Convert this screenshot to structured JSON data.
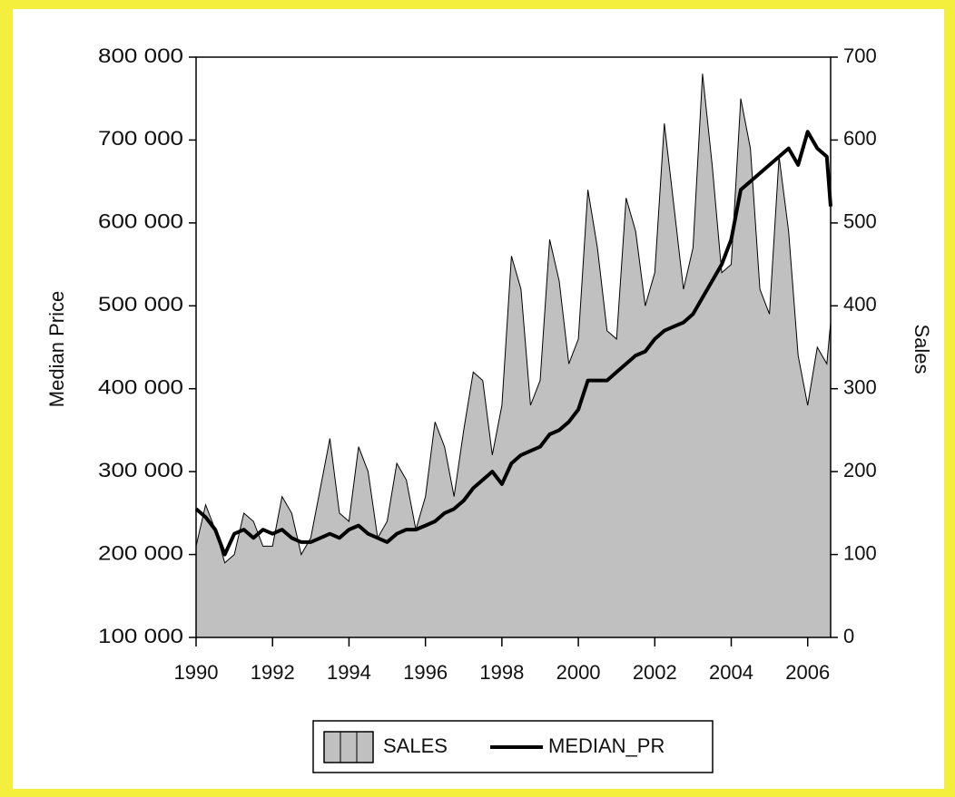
{
  "chart_data": {
    "type": "area-line",
    "y_label": "Median Price",
    "y2_label": "Sales",
    "x": [
      1990,
      1990.25,
      1990.5,
      1990.75,
      1991,
      1991.25,
      1991.5,
      1991.75,
      1992,
      1992.25,
      1992.5,
      1992.75,
      1993,
      1993.25,
      1993.5,
      1993.75,
      1994,
      1994.25,
      1994.5,
      1994.75,
      1995,
      1995.25,
      1995.5,
      1995.75,
      1996,
      1996.25,
      1996.5,
      1996.75,
      1997,
      1997.25,
      1997.5,
      1997.75,
      1998,
      1998.25,
      1998.5,
      1998.75,
      1999,
      1999.25,
      1999.5,
      1999.75,
      2000,
      2000.25,
      2000.5,
      2000.75,
      2001,
      2001.25,
      2001.5,
      2001.75,
      2002,
      2002.25,
      2002.5,
      2002.75,
      2003,
      2003.25,
      2003.5,
      2003.75,
      2004,
      2004.25,
      2004.5,
      2004.75,
      2005,
      2005.25,
      2005.5,
      2005.75,
      2006,
      2006.25,
      2006.5,
      2006.6
    ],
    "series": [
      {
        "name": "SALES",
        "color": "#c0c0c0",
        "axis": "y2",
        "values": [
          110,
          160,
          130,
          90,
          100,
          150,
          140,
          110,
          110,
          170,
          150,
          100,
          120,
          180,
          240,
          150,
          140,
          230,
          200,
          120,
          140,
          210,
          190,
          130,
          170,
          260,
          230,
          170,
          250,
          320,
          310,
          220,
          280,
          460,
          420,
          280,
          310,
          480,
          430,
          330,
          360,
          540,
          470,
          370,
          360,
          530,
          490,
          400,
          440,
          620,
          520,
          420,
          470,
          680,
          570,
          440,
          450,
          650,
          590,
          420,
          390,
          580,
          490,
          340,
          280,
          350,
          330,
          380
        ]
      },
      {
        "name": "MEDIAN_PR",
        "color": "#000000",
        "axis": "y",
        "values": [
          255000,
          245000,
          230000,
          200000,
          225000,
          230000,
          220000,
          230000,
          225000,
          230000,
          220000,
          215000,
          215000,
          220000,
          225000,
          220000,
          230000,
          235000,
          225000,
          220000,
          215000,
          225000,
          230000,
          230000,
          235000,
          240000,
          250000,
          255000,
          265000,
          280000,
          290000,
          300000,
          285000,
          310000,
          320000,
          325000,
          330000,
          345000,
          350000,
          360000,
          375000,
          410000,
          410000,
          410000,
          420000,
          430000,
          440000,
          445000,
          460000,
          470000,
          475000,
          480000,
          490000,
          510000,
          530000,
          550000,
          580000,
          640000,
          650000,
          660000,
          670000,
          680000,
          690000,
          670000,
          710000,
          690000,
          680000,
          620000
        ]
      }
    ],
    "xlim": [
      1990,
      2006.6
    ],
    "xticks": [
      1990,
      1992,
      1994,
      1996,
      1998,
      2000,
      2002,
      2004,
      2006
    ],
    "ylim": [
      100000,
      800000
    ],
    "yticks": [
      {
        "value": 100000,
        "label": "100 000"
      },
      {
        "value": 200000,
        "label": "200 000"
      },
      {
        "value": 300000,
        "label": "300 000"
      },
      {
        "value": 400000,
        "label": "400 000"
      },
      {
        "value": 500000,
        "label": "500 000"
      },
      {
        "value": 600000,
        "label": "600 000"
      },
      {
        "value": 700000,
        "label": "700 000"
      },
      {
        "value": 800000,
        "label": "800 000"
      }
    ],
    "y2lim": [
      0,
      700
    ],
    "y2ticks": [
      0,
      100,
      200,
      300,
      400,
      500,
      600,
      700
    ]
  }
}
